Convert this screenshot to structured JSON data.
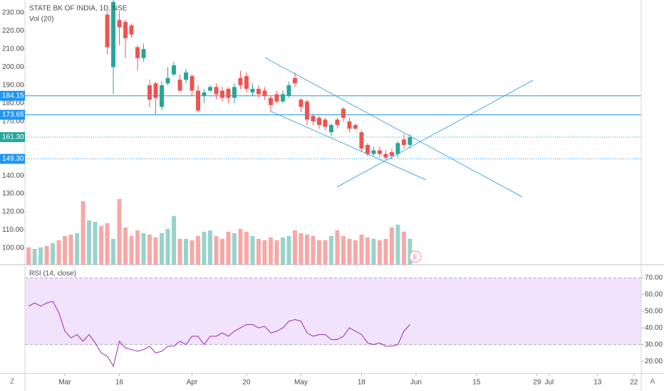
{
  "chart_data": {
    "type": "candlestick",
    "title": "STATE BK OF INDIA, 1D, NSE",
    "xlim": [
      -0.6,
      101.2
    ],
    "xticks": [
      {
        "value": 6,
        "label": "Mar"
      },
      {
        "value": 15,
        "label": "16"
      },
      {
        "value": 27,
        "label": "Apr"
      },
      {
        "value": 36,
        "label": "20"
      },
      {
        "value": 45,
        "label": "May"
      },
      {
        "value": 55,
        "label": "18"
      },
      {
        "value": 64,
        "label": "Jun"
      },
      {
        "value": 74,
        "label": "15"
      },
      {
        "value": 84,
        "label": "29"
      },
      {
        "value": 86,
        "label": "Jul"
      },
      {
        "value": 94,
        "label": "13"
      },
      {
        "value": 100,
        "label": "22"
      }
    ],
    "ylim": [
      90.96,
      237.07
    ],
    "yticks": [
      {
        "value": 230,
        "label": "230.00"
      },
      {
        "value": 220,
        "label": "220.00"
      },
      {
        "value": 210,
        "label": "210.00"
      },
      {
        "value": 200,
        "label": "200.00"
      },
      {
        "value": 190,
        "label": "190.00"
      },
      {
        "value": 180,
        "label": "180.00"
      },
      {
        "value": 170,
        "label": "170.00"
      },
      {
        "value": 140,
        "label": "140.00"
      },
      {
        "value": 130,
        "label": "130.00"
      },
      {
        "value": 120,
        "label": "120.00"
      },
      {
        "value": 110,
        "label": "110.00"
      },
      {
        "value": 100,
        "label": "100.00"
      }
    ],
    "hlines": [
      {
        "value": 184.15,
        "color": "#2196f3"
      },
      {
        "value": 173.65,
        "color": "#2196f3"
      },
      {
        "value": 161.3,
        "label": "161.30",
        "color": "#26a69a"
      },
      {
        "value": 149.3,
        "label": "149.30",
        "color": "#2196f3"
      }
    ],
    "up_color": "#26a69a",
    "down_color": "#ef5350",
    "candles": {
      "x": [
        13,
        14,
        15,
        16,
        17,
        18,
        19,
        20,
        21,
        22,
        23,
        24,
        25,
        26,
        27,
        28,
        29,
        30,
        31,
        32,
        33,
        34,
        35,
        36,
        37,
        38,
        39,
        40,
        41,
        42,
        43,
        44,
        45,
        46,
        47,
        48,
        49,
        50,
        51,
        52,
        53,
        54,
        55,
        56,
        57,
        58,
        59,
        60,
        61,
        62,
        63
      ],
      "open": [
        229,
        200,
        226,
        225,
        223,
        211,
        205,
        190,
        191,
        178,
        191,
        196,
        193,
        193,
        195,
        187,
        184,
        187,
        189,
        187,
        188,
        183,
        194,
        195,
        186,
        188,
        187,
        183,
        185,
        181,
        184,
        194,
        182,
        181,
        173,
        172,
        171,
        164,
        171,
        177,
        170,
        168,
        164,
        157,
        152,
        154,
        152,
        153,
        152,
        160,
        157
      ],
      "high": [
        231,
        238,
        231,
        226,
        224,
        212,
        213,
        193,
        192,
        192,
        200,
        203,
        196,
        199,
        196,
        190,
        188,
        190,
        191,
        189,
        189,
        191,
        198,
        197,
        191,
        190,
        189,
        184,
        187,
        187,
        192,
        197,
        183,
        182,
        174,
        173,
        172,
        169,
        172,
        178,
        172,
        169,
        165,
        158,
        156,
        156,
        154,
        155,
        159,
        163,
        163
      ],
      "low": [
        207,
        185,
        212,
        205,
        216,
        198,
        203,
        178,
        174,
        176,
        190,
        195,
        186,
        191,
        184,
        175,
        180,
        186,
        182,
        181,
        180,
        180,
        188,
        186,
        184,
        183,
        182,
        175,
        180,
        180,
        183,
        189,
        175,
        168,
        168,
        166,
        165,
        162,
        166,
        170,
        164,
        165,
        153,
        151,
        151,
        150,
        149,
        149,
        150,
        155,
        155
      ],
      "close": [
        211,
        236,
        222,
        216,
        218,
        205,
        210,
        182,
        183,
        190,
        194,
        201,
        187,
        197,
        187,
        176,
        186,
        189,
        185,
        183,
        183,
        189,
        190,
        188,
        188,
        185,
        184,
        179,
        181,
        185,
        190,
        191,
        178,
        171,
        170,
        168,
        167,
        168,
        168,
        172,
        166,
        166,
        155,
        152,
        154,
        152,
        150,
        151,
        158,
        157,
        161.3
      ]
    },
    "volume": {
      "name": "Vol (20)",
      "vlim": [
        0,
        100
      ],
      "x": [
        0,
        1,
        2,
        3,
        4,
        5,
        6,
        7,
        8,
        9,
        10,
        11,
        12,
        13,
        14,
        15,
        16,
        17,
        18,
        19,
        20,
        21,
        22,
        23,
        24,
        25,
        26,
        27,
        28,
        29,
        30,
        31,
        32,
        33,
        34,
        35,
        36,
        37,
        38,
        39,
        40,
        41,
        42,
        43,
        44,
        45,
        46,
        47,
        48,
        49,
        50,
        51,
        52,
        53,
        54,
        55,
        56,
        57,
        58,
        59,
        60,
        61,
        62,
        63
      ],
      "values": [
        24,
        22,
        24,
        26,
        30,
        34,
        40,
        42,
        44,
        89,
        62,
        60,
        54,
        58,
        36,
        92,
        52,
        40,
        48,
        44,
        42,
        38,
        44,
        50,
        68,
        36,
        36,
        34,
        40,
        46,
        48,
        40,
        36,
        46,
        44,
        50,
        46,
        40,
        36,
        34,
        38,
        34,
        38,
        40,
        48,
        44,
        42,
        40,
        34,
        34,
        40,
        48,
        40,
        36,
        34,
        42,
        38,
        36,
        34,
        36,
        52,
        56,
        46,
        36
      ],
      "colors": [
        "#f7a8a6",
        "#98d3cb",
        "#98d3cb",
        "#f7a8a6",
        "#98d3cb",
        "#f7a8a6",
        "#f7a8a6",
        "#f7a8a6",
        "#98d3cb",
        "#f7a8a6",
        "#98d3cb",
        "#98d3cb",
        "#f7a8a6",
        "#f7a8a6",
        "#98d3cb",
        "#f7a8a6",
        "#f7a8a6",
        "#f7a8a6",
        "#f7a8a6",
        "#98d3cb",
        "#f7a8a6",
        "#f7a8a6",
        "#98d3cb",
        "#98d3cb",
        "#98d3cb",
        "#f7a8a6",
        "#98d3cb",
        "#f7a8a6",
        "#f7a8a6",
        "#98d3cb",
        "#98d3cb",
        "#f7a8a6",
        "#f7a8a6",
        "#f7a8a6",
        "#98d3cb",
        "#f7a8a6",
        "#f7a8a6",
        "#98d3cb",
        "#f7a8a6",
        "#f7a8a6",
        "#f7a8a6",
        "#f7a8a6",
        "#98d3cb",
        "#98d3cb",
        "#f7a8a6",
        "#f7a8a6",
        "#f7a8a6",
        "#f7a8a6",
        "#f7a8a6",
        "#f7a8a6",
        "#98d3cb",
        "#f7a8a6",
        "#f7a8a6",
        "#f7a8a6",
        "#f7a8a6",
        "#f7a8a6",
        "#f7a8a6",
        "#98d3cb",
        "#f7a8a6",
        "#f7a8a6",
        "#f7a8a6",
        "#98d3cb",
        "#f7a8a6",
        "#98d3cb"
      ]
    },
    "rsi": {
      "name": "RSI (14, close)",
      "color": "#9c27b0",
      "ylim": [
        12.8,
        77.63
      ],
      "yticks": [
        {
          "value": 70,
          "label": "70.00"
        },
        {
          "value": 60,
          "label": "60.00"
        },
        {
          "value": 50,
          "label": "50.00"
        },
        {
          "value": 40,
          "label": "40.00"
        },
        {
          "value": 30,
          "label": "30.00"
        },
        {
          "value": 20,
          "label": "20.00"
        }
      ],
      "band": [
        30,
        70
      ],
      "x": [
        0,
        1,
        2,
        3,
        4,
        5,
        6,
        7,
        8,
        9,
        10,
        11,
        12,
        13,
        14,
        15,
        16,
        17,
        18,
        19,
        20,
        21,
        22,
        23,
        24,
        25,
        26,
        27,
        28,
        29,
        30,
        31,
        32,
        33,
        34,
        35,
        36,
        37,
        38,
        39,
        40,
        41,
        42,
        43,
        44,
        45,
        46,
        47,
        48,
        49,
        50,
        51,
        52,
        53,
        54,
        55,
        56,
        57,
        58,
        59,
        60,
        61,
        62,
        63
      ],
      "values": [
        53,
        55,
        53,
        55,
        56,
        49,
        38,
        34,
        36,
        32,
        36,
        31,
        25,
        23,
        17,
        32,
        28,
        27,
        26,
        27,
        29,
        25,
        26,
        29,
        29,
        32,
        30,
        35,
        35,
        30,
        35,
        35,
        37,
        35,
        38,
        40,
        42,
        42,
        40,
        41,
        37,
        38,
        40,
        44,
        45,
        44,
        37,
        35,
        36,
        36,
        33,
        33,
        35,
        40,
        38,
        36,
        31,
        30,
        31,
        29,
        29,
        30,
        38,
        42
      ]
    },
    "earnings_marker": "E",
    "corner_buttons": [
      "Z",
      "A"
    ]
  }
}
